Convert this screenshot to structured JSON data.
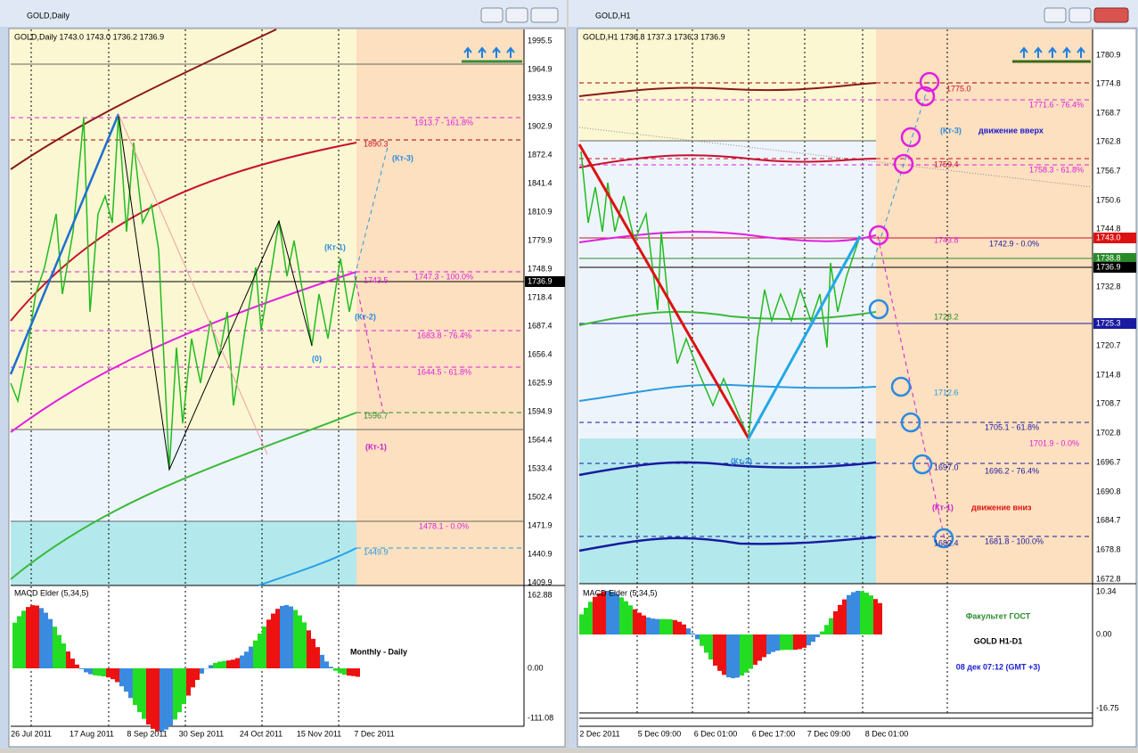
{
  "windows": [
    {
      "title": "GOLD,Daily",
      "header": "GOLD,Daily  1743.0 1743.0 1736.2 1736.9",
      "price_axis": [
        "1995.5",
        "1964.9",
        "1933.9",
        "1902.9",
        "1872.4",
        "1841.4",
        "1810.9",
        "1779.9",
        "1748.9",
        "1718.4",
        "1687.4",
        "1656.4",
        "1625.9",
        "1594.9",
        "1564.4",
        "1533.4",
        "1502.4",
        "1471.9",
        "1440.9",
        "1409.9"
      ],
      "price_boxes": [
        "1736.9"
      ],
      "time_axis": [
        "26 Jul 2011",
        "17 Aug 2011",
        "8 Sep 2011",
        "30 Sep 2011",
        "24 Oct 2011",
        "15 Nov 2011",
        "7 Dec 2011"
      ],
      "level_labels": [
        "1913.7 - 161.8%",
        "1890.3",
        "1747.3 - 100.0%",
        "1743.5",
        "1683.8 - 76.4%",
        "1644.5 - 61.8%",
        "1596.7",
        "1478.1 - 0.0%",
        "1449.9"
      ],
      "annotations": [
        "(Кт-3)",
        "(Кт-1)",
        "(Кт-2)",
        "(0)",
        "(Кт-1)"
      ],
      "indicator": {
        "name": "MACD Elder (5,34,5)",
        "axis": [
          "162.88",
          "0.00",
          "-111.08"
        ]
      },
      "caption": "Monthly - Daily"
    },
    {
      "title": "GOLD,H1",
      "header": "GOLD,H1  1736.8 1737.3 1736.3 1736.9",
      "price_axis": [
        "1780.9",
        "1774.8",
        "1768.7",
        "1762.8",
        "1756.7",
        "1750.6",
        "1744.8",
        "1732.8",
        "1720.7",
        "1714.8",
        "1708.7",
        "1702.8",
        "1696.7",
        "1690.8",
        "1684.7",
        "1678.8",
        "1672.8"
      ],
      "price_boxes": [
        "1743.0",
        "1738.8",
        "1736.9",
        "1725.3"
      ],
      "time_axis": [
        "2 Dec 2011",
        "5 Dec 09:00",
        "6 Dec 01:00",
        "6 Dec 17:00",
        "7 Dec 09:00",
        "8 Dec 01:00"
      ],
      "level_labels": [
        "1775.0",
        "1771.6 - 76.4%",
        "1759.4",
        "1758.3 - 61.8%",
        "1743.8",
        "1742.9 - 0.0%",
        "1728.2",
        "1712.6",
        "1705.1 - 61.8%",
        "1701.9 - 0.0%",
        "1697.0",
        "1696.2 - 76.4%",
        "1682.4",
        "1681.8 - 100.0%"
      ],
      "annotations": [
        "(Кт-3)",
        "движение вверх",
        "(Кт-2)",
        "(Кт-1)",
        "движение вниз"
      ],
      "indicator": {
        "name": "MACD Elder (5,34,5)",
        "axis": [
          "10.34",
          "0.00",
          "-16.75"
        ]
      },
      "caption_lines": [
        "Факультет ГОСТ",
        "GOLD  H1-D1",
        "08 дек 07:12 (GMT +3)"
      ]
    }
  ]
}
